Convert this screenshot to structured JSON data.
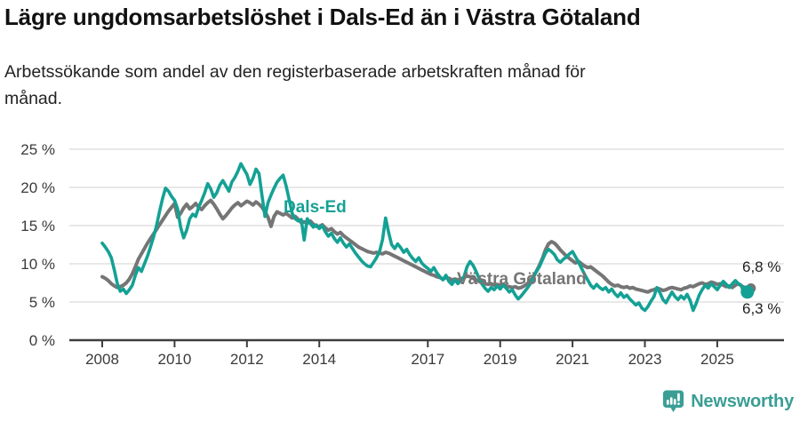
{
  "header": {
    "title": "Lägre ungdomsarbetslöshet i Dals-Ed än i Västra Götaland",
    "subtitle_line1": "Arbetssökande som andel av den registerbaserade arbetskraften månad för",
    "subtitle_line2": "månad."
  },
  "footer": {
    "brand": "Newsworthy",
    "brand_color": "#3a9e95"
  },
  "chart_data": {
    "type": "line",
    "title": "Lägre ungdomsarbetslöshet i Dals-Ed än i Västra Götaland",
    "subtitle": "Arbetssökande som andel av den registerbaserade arbetskraften månad för månad.",
    "frequency": "monthly",
    "x_start": "2008-01",
    "x_end": "2025-11",
    "ylim": [
      0,
      25
    ],
    "grid": true,
    "legend_position": "inline-labels",
    "y_ticks": [
      {
        "value": 0,
        "label": "0 %"
      },
      {
        "value": 5,
        "label": "5 %"
      },
      {
        "value": 10,
        "label": "10 %"
      },
      {
        "value": 15,
        "label": "15 %"
      },
      {
        "value": 20,
        "label": "20 %"
      },
      {
        "value": 25,
        "label": "25 %"
      }
    ],
    "x_ticks": [
      {
        "year": 2008,
        "label": "2008"
      },
      {
        "year": 2010,
        "label": "2010"
      },
      {
        "year": 2012,
        "label": "2012"
      },
      {
        "year": 2014,
        "label": "2014"
      },
      {
        "year": 2017,
        "label": "2017"
      },
      {
        "year": 2019,
        "label": "2019"
      },
      {
        "year": 2021,
        "label": "2021"
      },
      {
        "year": 2023,
        "label": "2023"
      },
      {
        "year": 2025,
        "label": "2025"
      }
    ],
    "series_labels": {
      "dals_ed": "Dals-Ed",
      "vastra_gotaland": "Västra Götaland"
    },
    "end_labels": {
      "dals_ed": "6,3 %",
      "vastra_gotaland": "6,8 %"
    },
    "series": [
      {
        "id": "vastra-gotaland",
        "name": "Västra Götaland",
        "color": "#757575",
        "last_value": 6.8,
        "values": [
          8.3,
          8.1,
          7.8,
          7.4,
          7.1,
          6.9,
          7.0,
          7.2,
          7.5,
          8.0,
          8.7,
          9.6,
          10.6,
          11.3,
          12.0,
          12.7,
          13.3,
          13.9,
          14.5,
          15.1,
          15.7,
          16.3,
          16.9,
          17.4,
          17.9,
          16.1,
          16.6,
          17.3,
          17.8,
          17.2,
          17.5,
          17.9,
          17.4,
          17.1,
          17.6,
          18.0,
          18.3,
          17.8,
          17.2,
          16.5,
          15.9,
          16.3,
          16.8,
          17.3,
          17.7,
          18.0,
          17.6,
          17.9,
          18.2,
          18.0,
          17.7,
          18.1,
          17.8,
          17.4,
          16.8,
          16.1,
          14.9,
          16.2,
          16.8,
          16.6,
          16.4,
          16.6,
          16.3,
          16.0,
          16.2,
          15.8,
          15.4,
          15.5,
          15.3,
          15.6,
          15.2,
          14.9,
          14.9,
          15.1,
          14.7,
          14.4,
          14.6,
          14.2,
          13.9,
          14.1,
          13.7,
          13.4,
          13.1,
          12.8,
          12.5,
          12.2,
          12.0,
          11.8,
          11.6,
          11.5,
          11.4,
          11.5,
          11.4,
          11.3,
          11.5,
          11.4,
          11.2,
          11.0,
          10.8,
          10.6,
          10.4,
          10.2,
          10.0,
          9.8,
          9.6,
          9.4,
          9.2,
          9.0,
          8.8,
          8.6,
          8.5,
          8.3,
          8.2,
          8.0,
          8.2,
          8.1,
          7.9,
          8.0,
          7.9,
          8.0,
          8.2,
          8.4,
          8.3,
          8.1,
          7.9,
          7.7,
          7.6,
          7.4,
          7.3,
          7.4,
          7.2,
          7.3,
          7.2,
          7.3,
          7.1,
          7.0,
          6.9,
          7.0,
          6.8,
          6.9,
          7.1,
          7.4,
          7.8,
          8.3,
          9.0,
          9.8,
          10.7,
          11.8,
          12.6,
          12.9,
          12.7,
          12.3,
          11.8,
          11.4,
          11.0,
          10.7,
          10.4,
          10.1,
          10.3,
          10.0,
          9.7,
          9.5,
          9.6,
          9.3,
          9.0,
          8.7,
          8.4,
          8.0,
          7.6,
          7.3,
          7.1,
          7.2,
          7.0,
          6.9,
          7.0,
          6.8,
          6.9,
          6.7,
          6.6,
          6.5,
          6.4,
          6.3,
          6.5,
          6.6,
          6.8,
          6.7,
          6.5,
          6.6,
          6.8,
          6.9,
          6.8,
          6.7,
          6.6,
          6.8,
          6.9,
          7.1,
          7.0,
          7.2,
          7.4,
          7.5,
          7.3,
          7.4,
          7.6,
          7.5,
          7.3,
          7.4,
          7.2,
          7.0,
          7.1,
          6.9,
          7.2,
          7.4,
          7.1,
          6.9,
          6.8
        ]
      },
      {
        "id": "dals-ed",
        "name": "Dals-Ed",
        "color": "#14a195",
        "last_value": 6.3,
        "values": [
          12.7,
          12.2,
          11.6,
          10.8,
          9.2,
          7.4,
          6.4,
          6.7,
          6.1,
          6.6,
          7.2,
          8.5,
          9.5,
          9.0,
          10.0,
          11.0,
          12.2,
          13.5,
          15.0,
          16.8,
          18.5,
          19.9,
          19.5,
          18.8,
          18.3,
          17.2,
          14.8,
          13.4,
          14.4,
          15.9,
          16.5,
          16.2,
          17.4,
          18.3,
          19.3,
          20.5,
          19.8,
          18.7,
          19.3,
          20.3,
          20.9,
          20.2,
          19.5,
          20.7,
          21.3,
          22.1,
          23.1,
          22.4,
          21.7,
          20.4,
          21.2,
          22.4,
          21.8,
          18.9,
          16.2,
          18.0,
          19.0,
          19.9,
          20.7,
          21.2,
          21.6,
          20.2,
          18.4,
          16.6,
          15.9,
          15.6,
          15.8,
          13.1,
          15.9,
          15.3,
          14.8,
          15.1,
          14.6,
          15.0,
          14.2,
          13.6,
          14.0,
          13.3,
          12.8,
          13.4,
          12.7,
          12.2,
          12.6,
          12.0,
          11.4,
          10.9,
          10.4,
          10.0,
          9.7,
          9.6,
          10.2,
          10.8,
          11.6,
          13.2,
          16.0,
          14.1,
          12.5,
          12.0,
          12.6,
          12.1,
          11.5,
          11.9,
          11.2,
          10.7,
          10.3,
          10.8,
          10.1,
          9.7,
          9.4,
          9.0,
          9.5,
          8.8,
          8.3,
          7.9,
          8.5,
          7.7,
          7.3,
          7.9,
          7.4,
          7.8,
          8.3,
          9.6,
          10.3,
          9.8,
          9.0,
          8.1,
          7.3,
          6.8,
          6.4,
          6.9,
          6.6,
          7.1,
          6.7,
          7.2,
          6.8,
          6.3,
          6.6,
          5.9,
          5.4,
          5.8,
          6.3,
          6.8,
          7.4,
          8.2,
          9.0,
          9.6,
          10.5,
          11.4,
          11.9,
          11.6,
          11.2,
          10.5,
          10.2,
          10.6,
          10.9,
          11.3,
          11.6,
          10.9,
          10.2,
          9.4,
          8.6,
          7.9,
          7.2,
          6.8,
          7.3,
          6.9,
          6.6,
          6.9,
          6.3,
          6.7,
          6.1,
          5.7,
          6.2,
          5.6,
          5.9,
          5.4,
          5.0,
          4.6,
          4.9,
          4.2,
          3.9,
          4.4,
          5.1,
          5.7,
          6.9,
          6.2,
          5.3,
          4.9,
          5.6,
          6.3,
          5.7,
          5.3,
          5.8,
          5.4,
          6.0,
          5.2,
          3.9,
          4.8,
          5.9,
          6.6,
          7.2,
          6.8,
          7.4,
          7.0,
          6.6,
          7.2,
          7.7,
          7.3,
          6.9,
          7.4,
          7.8,
          7.4,
          7.2,
          5.9,
          6.3
        ]
      }
    ]
  }
}
